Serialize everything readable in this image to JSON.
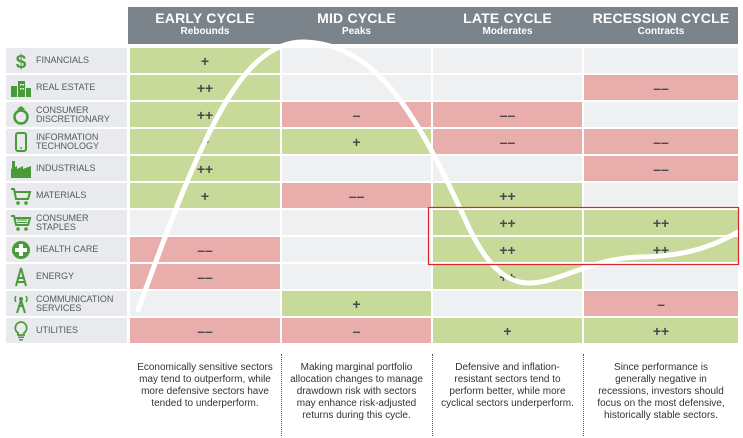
{
  "columns": [
    {
      "title": "EARLY CYCLE",
      "subtitle": "Rebounds"
    },
    {
      "title": "MID CYCLE",
      "subtitle": "Peaks"
    },
    {
      "title": "LATE CYCLE",
      "subtitle": "Moderates"
    },
    {
      "title": "RECESSION CYCLE",
      "subtitle": "Contracts"
    }
  ],
  "colors": {
    "positive": "#c7da99",
    "negative": "#e9aeac",
    "neutral": "#eef0f2",
    "header": "#7b838b",
    "icon": "#4a9a3a",
    "highlight": "#d9242a"
  },
  "rows": [
    {
      "label": "FINANCIALS",
      "icon": "dollar-icon",
      "cells": [
        {
          "v": "+",
          "t": "g"
        },
        {
          "v": "",
          "t": "e"
        },
        {
          "v": "",
          "t": "e"
        },
        {
          "v": "",
          "t": "e"
        }
      ]
    },
    {
      "label": "REAL ESTATE",
      "icon": "buildings-icon",
      "cells": [
        {
          "v": "++",
          "t": "g"
        },
        {
          "v": "",
          "t": "e"
        },
        {
          "v": "",
          "t": "e"
        },
        {
          "v": "––",
          "t": "r"
        }
      ]
    },
    {
      "label": "CONSUMER DISCRETIONARY",
      "icon": "ring-icon",
      "cells": [
        {
          "v": "++",
          "t": "g"
        },
        {
          "v": "–",
          "t": "r"
        },
        {
          "v": "––",
          "t": "r"
        },
        {
          "v": "",
          "t": "e"
        }
      ]
    },
    {
      "label": "INFORMATION TECHNOLOGY",
      "icon": "phone-icon",
      "cells": [
        {
          "v": "+",
          "t": "g"
        },
        {
          "v": "+",
          "t": "g"
        },
        {
          "v": "––",
          "t": "r"
        },
        {
          "v": "––",
          "t": "r"
        }
      ]
    },
    {
      "label": "INDUSTRIALS",
      "icon": "factory-icon",
      "cells": [
        {
          "v": "++",
          "t": "g"
        },
        {
          "v": "",
          "t": "e"
        },
        {
          "v": "",
          "t": "e"
        },
        {
          "v": "––",
          "t": "r"
        }
      ]
    },
    {
      "label": "MATERIALS",
      "icon": "cart-icon",
      "cells": [
        {
          "v": "+",
          "t": "g"
        },
        {
          "v": "––",
          "t": "r"
        },
        {
          "v": "++",
          "t": "g"
        },
        {
          "v": "",
          "t": "e"
        }
      ]
    },
    {
      "label": "CONSUMER STAPLES",
      "icon": "basket-icon",
      "cells": [
        {
          "v": "",
          "t": "e"
        },
        {
          "v": "",
          "t": "e"
        },
        {
          "v": "++",
          "t": "g"
        },
        {
          "v": "++",
          "t": "g"
        }
      ]
    },
    {
      "label": "HEALTH CARE",
      "icon": "medical-cross-icon",
      "cells": [
        {
          "v": "––",
          "t": "r"
        },
        {
          "v": "",
          "t": "e"
        },
        {
          "v": "++",
          "t": "g"
        },
        {
          "v": "++",
          "t": "g"
        }
      ]
    },
    {
      "label": "ENERGY",
      "icon": "oil-derrick-icon",
      "cells": [
        {
          "v": "––",
          "t": "r"
        },
        {
          "v": "",
          "t": "e"
        },
        {
          "v": "++",
          "t": "g"
        },
        {
          "v": "",
          "t": "e"
        }
      ]
    },
    {
      "label": "COMMUNICATION SERVICES",
      "icon": "antenna-icon",
      "cells": [
        {
          "v": "",
          "t": "e"
        },
        {
          "v": "+",
          "t": "g"
        },
        {
          "v": "",
          "t": "e"
        },
        {
          "v": "–",
          "t": "r"
        }
      ]
    },
    {
      "label": "UTILITIES",
      "icon": "lightbulb-icon",
      "cells": [
        {
          "v": "––",
          "t": "r"
        },
        {
          "v": "–",
          "t": "r"
        },
        {
          "v": "+",
          "t": "g"
        },
        {
          "v": "++",
          "t": "g"
        }
      ]
    }
  ],
  "descriptions": [
    "Economically sensitive sectors may tend to outperform, while more defensive sectors have tended to underperform.",
    "Making marginal portfolio allocation changes to manage drawdown risk with sectors may enhance risk-adjusted returns during this cycle.",
    "Defensive and inflation-resistant sectors tend to perform better, while more cyclical sectors underperform.",
    "Since performance is generally negative in recessions, investors should focus on the most defensive, historically stable sectors."
  ]
}
